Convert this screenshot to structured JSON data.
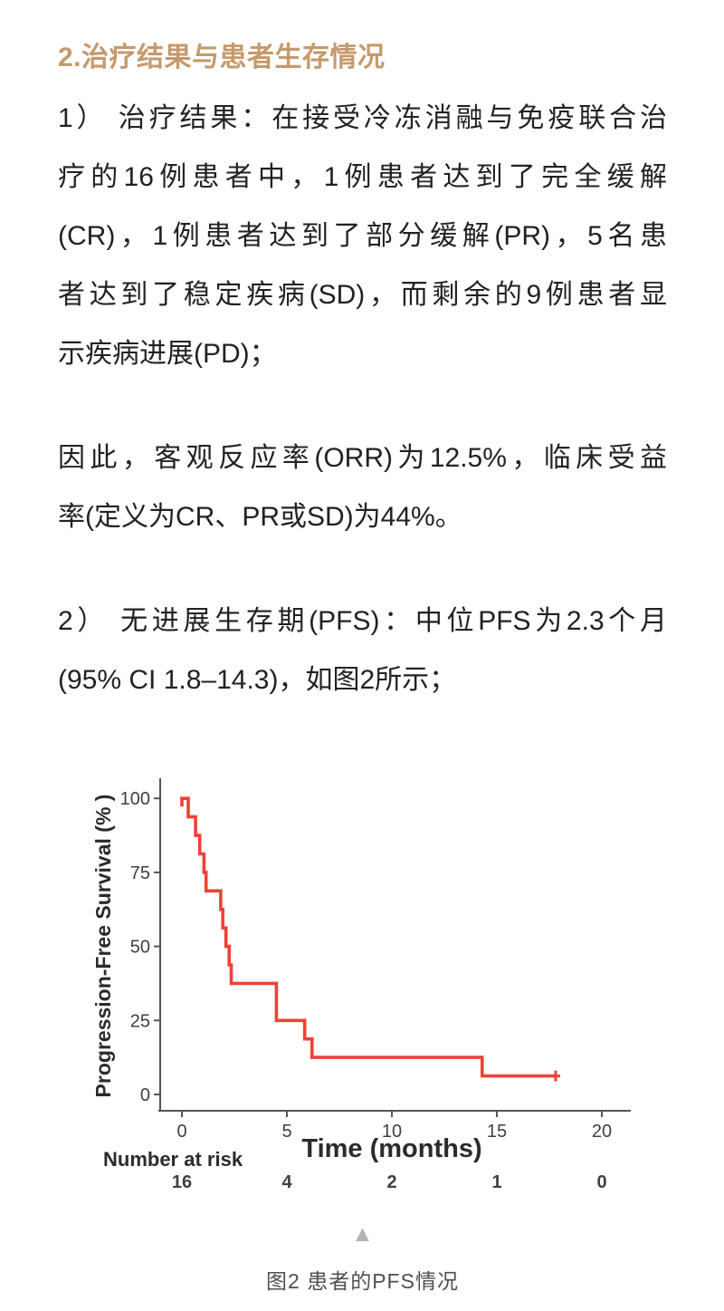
{
  "article": {
    "heading": "2.治疗结果与患者生存情况",
    "paragraphs": [
      {
        "lines": [
          "1） 治疗结果：在接受冷冻消融与免疫联合治",
          "疗的16例患者中，1例患者达到了完全缓解",
          "(CR)，1例患者达到了部分缓解(PR)，5名患",
          "者达到了稳定疾病(SD)，而剩余的9例患者显",
          "示疾病进展(PD)；"
        ]
      },
      {
        "lines": [
          "因此，客观反应率(ORR)为12.5%，临床受益",
          "率(定义为CR、PR或SD)为44%。"
        ]
      },
      {
        "lines": [
          "2） 无进展生存期(PFS)：中位PFS为2.3个月",
          "(95% CI 1.8–14.3)，如图2所示；"
        ]
      }
    ],
    "arrow_glyph": "▲",
    "figure_caption": "图2 患者的PFS情况",
    "colors": {
      "heading": "#c49a6c",
      "body_text": "#222222",
      "caption": "#4f4f4f",
      "arrow": "#b3b3b3"
    }
  },
  "chart_data": {
    "type": "line",
    "subtype": "kaplan_meier_step",
    "title": "",
    "xlabel": "Time (months)",
    "ylabel": "Progression-Free Survival (% )",
    "xlim": [
      0,
      21.4
    ],
    "ylim": [
      0,
      100
    ],
    "x_ticks": [
      0,
      5,
      10,
      15,
      20
    ],
    "y_ticks": [
      0,
      25,
      50,
      75,
      100
    ],
    "grid": false,
    "legend": "none",
    "axis_color": "#555555",
    "tick_label_color": "#404040",
    "axis_title_color": "#2b2b2b",
    "series": [
      {
        "name": "PFS",
        "color": "#ee4237",
        "steps": [
          {
            "t": 0,
            "survival": 100
          },
          {
            "t": 0.3,
            "survival": 93.75
          },
          {
            "t": 0.65,
            "survival": 87.5
          },
          {
            "t": 0.85,
            "survival": 81.25
          },
          {
            "t": 1.05,
            "survival": 75
          },
          {
            "t": 1.15,
            "survival": 68.75
          },
          {
            "t": 1.85,
            "survival": 62.5
          },
          {
            "t": 1.95,
            "survival": 56.25
          },
          {
            "t": 2.1,
            "survival": 50
          },
          {
            "t": 2.25,
            "survival": 43.75
          },
          {
            "t": 2.35,
            "survival": 37.5
          },
          {
            "t": 4.5,
            "survival": 25
          },
          {
            "t": 5.85,
            "survival": 18.75
          },
          {
            "t": 6.2,
            "survival": 12.5
          },
          {
            "t": 14.3,
            "survival": 6.25
          }
        ],
        "end_time": 17.8,
        "censor_times": [
          17.8
        ]
      }
    ],
    "number_at_risk": {
      "label": "Number at risk",
      "times": [
        0,
        5,
        10,
        15,
        20
      ],
      "values": [
        16,
        4,
        2,
        1,
        0
      ]
    }
  }
}
